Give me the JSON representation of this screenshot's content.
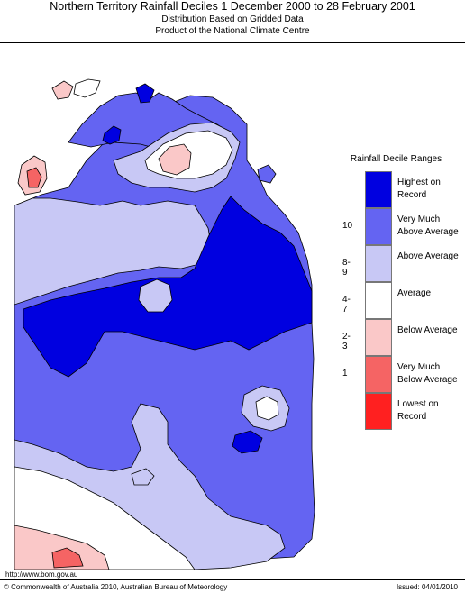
{
  "header": {
    "title": "Northern Territory Rainfall Deciles     1 December 2000 to 28 February 2001",
    "subtitle1": "Distribution Based on Gridded Data",
    "subtitle2": "Product of the National Climate Centre"
  },
  "legend": {
    "title": "Rainfall Decile Ranges",
    "items": [
      {
        "label": "Highest on Record",
        "range": "",
        "color": "#0000e0"
      },
      {
        "label": "Very Much Above Average",
        "range": "10",
        "color": "#6464f2"
      },
      {
        "label": "Above Average",
        "range": "8-9",
        "color": "#c8c8f5"
      },
      {
        "label": "Average",
        "range": "4-7",
        "color": "#ffffff"
      },
      {
        "label": "Below Average",
        "range": "2-3",
        "color": "#fac8c8"
      },
      {
        "label": "Very Much Below Average",
        "range": "1",
        "color": "#f56464"
      },
      {
        "label": "Lowest on Record",
        "range": "",
        "color": "#ff2020"
      }
    ]
  },
  "footer": {
    "url": "http://www.bom.gov.au",
    "copyright": "© Commonwealth of Australia 2010, Australian Bureau of Meteorology",
    "issued": "Issued: 04/01/2010"
  }
}
